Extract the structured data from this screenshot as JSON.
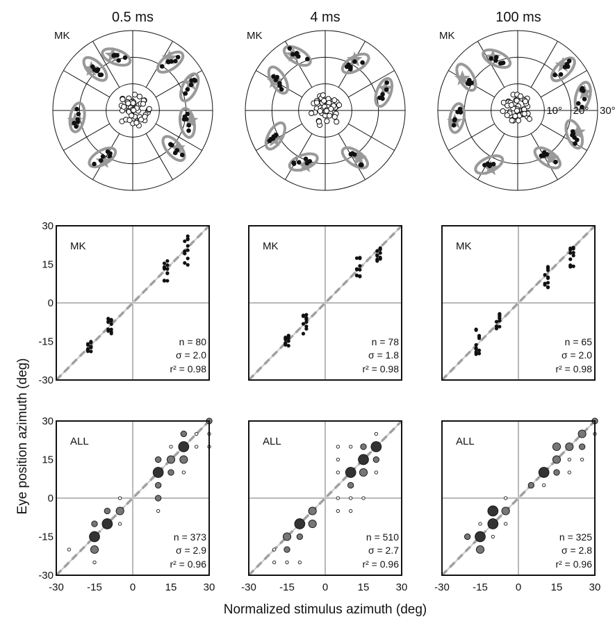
{
  "figure": {
    "column_titles": [
      "0.5 ms",
      "4 ms",
      "100 ms"
    ],
    "ylabel": "Eye position azimuth (deg)",
    "xlabel": "Normalized stimulus azimuth (deg)",
    "polar_ring_labels": [
      "10°",
      "20°",
      "30°"
    ],
    "scatter_ticks": [
      "-30",
      "-15",
      "0",
      "15",
      "30"
    ],
    "colors": {
      "ellipse": "#999999",
      "star": "#999999",
      "grid": "#b8b8b8",
      "identity": "#a0a0a0",
      "dot": "#111111",
      "bubble_dark": "#333333",
      "bubble_mid": "#777777"
    }
  },
  "chart_data": [
    {
      "type": "polar-scatter",
      "panel": "polar-0.5ms",
      "label": "MK",
      "rmax": 30,
      "rings": [
        10,
        20,
        30
      ],
      "targets": [
        {
          "az": 130,
          "r": 22
        },
        {
          "az": 100,
          "r": 22
        },
        {
          "az": 65,
          "r": 24
        },
        {
          "az": 35,
          "r": 24
        },
        {
          "az": -20,
          "r": 22
        },
        {
          "az": -45,
          "r": 22
        },
        {
          "az": -100,
          "r": 22
        },
        {
          "az": -150,
          "r": 22
        }
      ]
    },
    {
      "type": "polar-scatter",
      "panel": "polar-4ms",
      "label": "MK",
      "rmax": 30,
      "rings": [
        10,
        20,
        30
      ],
      "targets": [
        {
          "az": 145,
          "r": 22
        },
        {
          "az": 70,
          "r": 24
        },
        {
          "az": 30,
          "r": 22
        },
        {
          "az": -30,
          "r": 24
        },
        {
          "az": -60,
          "r": 22
        },
        {
          "az": -120,
          "r": 22
        },
        {
          "az": -160,
          "r": 22
        }
      ]
    },
    {
      "type": "polar-scatter",
      "panel": "polar-100ms",
      "label": "MK",
      "rmax": 30,
      "rings": [
        10,
        20,
        30
      ],
      "targets": [
        {
          "az": 145,
          "r": 22
        },
        {
          "az": 110,
          "r": 24
        },
        {
          "az": 75,
          "r": 26
        },
        {
          "az": 45,
          "r": 24
        },
        {
          "az": -25,
          "r": 22
        },
        {
          "az": -60,
          "r": 24
        },
        {
          "az": -100,
          "r": 24
        },
        {
          "az": -155,
          "r": 24
        }
      ]
    },
    {
      "type": "scatter",
      "panel": "mk-0.5ms",
      "label": "MK",
      "xlim": [
        -30,
        30
      ],
      "ylim": [
        -30,
        30
      ],
      "n": "n = 80",
      "sigma": "σ = 2.0",
      "r2": "r² = 0.98",
      "clusters": [
        {
          "x": -17,
          "y": -17,
          "spread": 2
        },
        {
          "x": -9,
          "y": -9,
          "spread": 3
        },
        {
          "x": 13,
          "y": 12,
          "spread": 5
        },
        {
          "x": 21,
          "y": 20,
          "spread": 6
        }
      ]
    },
    {
      "type": "scatter",
      "panel": "mk-4ms",
      "label": "MK",
      "xlim": [
        -30,
        30
      ],
      "ylim": [
        -30,
        30
      ],
      "n": "n = 78",
      "sigma": "σ = 1.8",
      "r2": "r² = 0.98",
      "clusters": [
        {
          "x": -15,
          "y": -14,
          "spread": 3
        },
        {
          "x": -8,
          "y": -8,
          "spread": 4
        },
        {
          "x": 13,
          "y": 14,
          "spread": 4
        },
        {
          "x": 21,
          "y": 19,
          "spread": 3
        }
      ]
    },
    {
      "type": "scatter",
      "panel": "mk-100ms",
      "label": "MK",
      "xlim": [
        -30,
        30
      ],
      "ylim": [
        -30,
        30
      ],
      "n": "n = 65",
      "sigma": "σ = 2.0",
      "r2": "r² = 0.98",
      "clusters": [
        {
          "x": -16,
          "y": -15,
          "spread": 5
        },
        {
          "x": -8,
          "y": -7,
          "spread": 3
        },
        {
          "x": 11,
          "y": 11,
          "spread": 5
        },
        {
          "x": 21,
          "y": 18,
          "spread": 4
        }
      ]
    },
    {
      "type": "bubble",
      "panel": "all-0.5ms",
      "label": "ALL",
      "xlim": [
        -30,
        30
      ],
      "ylim": [
        -30,
        30
      ],
      "n": "n = 373",
      "sigma": "σ = 2.9",
      "r2": "r² = 0.96",
      "points": [
        [
          -25,
          -20,
          1
        ],
        [
          -15,
          -15,
          4
        ],
        [
          -15,
          -20,
          3
        ],
        [
          -15,
          -25,
          1
        ],
        [
          -15,
          -10,
          2
        ],
        [
          -10,
          -10,
          4
        ],
        [
          -10,
          -5,
          2
        ],
        [
          -5,
          -5,
          3
        ],
        [
          -5,
          0,
          1
        ],
        [
          -5,
          -10,
          1
        ],
        [
          10,
          10,
          4
        ],
        [
          10,
          5,
          2
        ],
        [
          10,
          0,
          2
        ],
        [
          10,
          -5,
          1
        ],
        [
          10,
          15,
          2
        ],
        [
          15,
          15,
          3
        ],
        [
          15,
          10,
          2
        ],
        [
          15,
          20,
          1
        ],
        [
          20,
          20,
          4
        ],
        [
          20,
          15,
          3
        ],
        [
          20,
          10,
          1
        ],
        [
          20,
          25,
          2
        ],
        [
          25,
          25,
          1
        ],
        [
          25,
          20,
          1
        ],
        [
          30,
          30,
          2
        ],
        [
          30,
          25,
          1
        ],
        [
          30,
          20,
          1
        ]
      ]
    },
    {
      "type": "bubble",
      "panel": "all-4ms",
      "label": "ALL",
      "xlim": [
        -30,
        30
      ],
      "ylim": [
        -30,
        30
      ],
      "n": "n = 510",
      "sigma": "σ = 2.7",
      "r2": "r² = 0.96",
      "points": [
        [
          -20,
          -20,
          1
        ],
        [
          -20,
          -25,
          1
        ],
        [
          -15,
          -15,
          3
        ],
        [
          -15,
          -20,
          2
        ],
        [
          -15,
          -25,
          1
        ],
        [
          -10,
          -10,
          4
        ],
        [
          -10,
          -15,
          2
        ],
        [
          -5,
          -10,
          3
        ],
        [
          -5,
          -5,
          3
        ],
        [
          -10,
          -25,
          1
        ],
        [
          5,
          -5,
          1
        ],
        [
          5,
          0,
          1
        ],
        [
          10,
          10,
          4
        ],
        [
          10,
          5,
          2
        ],
        [
          10,
          0,
          1
        ],
        [
          10,
          -5,
          1
        ],
        [
          15,
          15,
          4
        ],
        [
          15,
          10,
          3
        ],
        [
          15,
          20,
          2
        ],
        [
          15,
          0,
          1
        ],
        [
          20,
          20,
          4
        ],
        [
          20,
          15,
          2
        ],
        [
          20,
          10,
          1
        ],
        [
          10,
          20,
          1
        ],
        [
          5,
          15,
          1
        ],
        [
          5,
          20,
          1
        ],
        [
          5,
          10,
          1
        ],
        [
          20,
          25,
          1
        ]
      ]
    },
    {
      "type": "bubble",
      "panel": "all-100ms",
      "label": "ALL",
      "xlim": [
        -30,
        30
      ],
      "ylim": [
        -30,
        30
      ],
      "n": "n = 325",
      "sigma": "σ = 2.8",
      "r2": "r² = 0.96",
      "points": [
        [
          -20,
          -15,
          2
        ],
        [
          -15,
          -15,
          4
        ],
        [
          -15,
          -20,
          3
        ],
        [
          -15,
          -10,
          1
        ],
        [
          -10,
          -10,
          4
        ],
        [
          -10,
          -5,
          4
        ],
        [
          -10,
          -15,
          1
        ],
        [
          -5,
          -5,
          3
        ],
        [
          -5,
          -10,
          1
        ],
        [
          -5,
          0,
          1
        ],
        [
          5,
          5,
          2
        ],
        [
          10,
          10,
          4
        ],
        [
          10,
          5,
          1
        ],
        [
          15,
          15,
          3
        ],
        [
          15,
          20,
          3
        ],
        [
          15,
          10,
          2
        ],
        [
          20,
          20,
          3
        ],
        [
          20,
          15,
          1
        ],
        [
          25,
          25,
          3
        ],
        [
          25,
          20,
          2
        ],
        [
          25,
          15,
          1
        ],
        [
          30,
          30,
          2
        ],
        [
          30,
          25,
          1
        ],
        [
          20,
          10,
          1
        ]
      ]
    }
  ]
}
